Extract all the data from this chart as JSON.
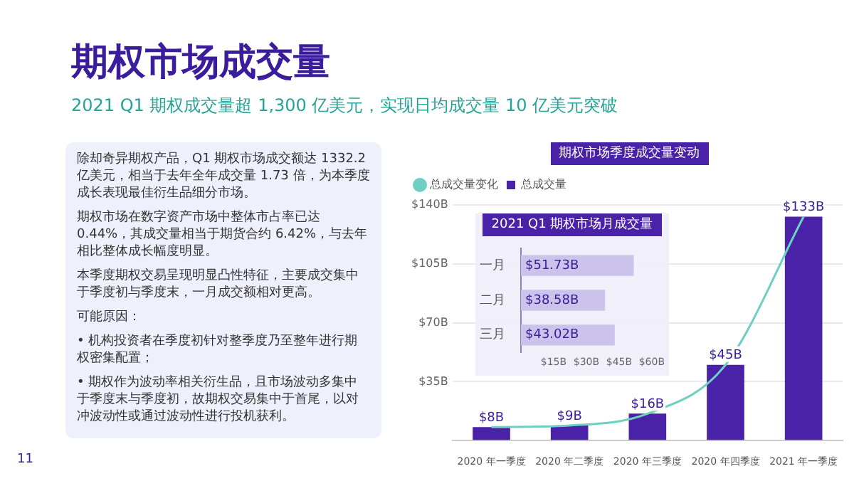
{
  "chart_data": [
    {
      "type": "other",
      "title": "期权市场成交量",
      "subtitle": "2021 Q1 期权成交量超 1,300 亿美元，实现日均成交量 10 亿美元突破",
      "annotations": [
        "除却奇异期权产品，Q1 期权市场成交额达 1332.2 亿美元，相当于去年全年成交量 1.73 倍，为本季度成长表现最佳衍生品细分市场。",
        "期权市场在数字资产市场中整体市占率已达 0.44%，其成交量相当于期货合约 6.42%，与去年相比整体成长幅度明显。",
        "本季度期权交易呈现明显凸性特征，主要成交集中于季度初与季度末，一月成交额相对更高。",
        "可能原因：",
        "• 机构投资者在季度初针对整季度乃至整年进行期权密集配置；",
        "• 期权作为波动率相关衍生品，且市场波动多集中于季度末与季度初，故期权交易集中于首尾，以对冲波动性或通过波动性进行投机获利。",
        "11"
      ]
    },
    {
      "type": "bar",
      "title": "期权市场季度成交量变动",
      "categories": [
        "2020 年一季度",
        "2020 年二季度",
        "2020 年三季度",
        "2020 年四季度",
        "2021 年一季度"
      ],
      "series": [
        {
          "name": "总成交量变化",
          "type": "line",
          "color": "#6fcfc0",
          "marker": "none",
          "values": [
            8,
            9,
            16,
            45,
            133
          ]
        },
        {
          "name": "总成交量",
          "type": "bar",
          "color": "#4a22a8",
          "values": [
            8,
            9,
            16,
            45,
            133
          ],
          "value_labels": [
            "$8B",
            "$9B",
            "$16B",
            "$45B",
            "$133B"
          ]
        }
      ],
      "ylim": [
        0,
        140
      ],
      "yticks": [
        {
          "value": 0,
          "label": null
        },
        {
          "value": 35,
          "label": "$35B"
        },
        {
          "value": 70,
          "label": "$70B"
        },
        {
          "value": 105,
          "label": "$105B"
        },
        {
          "value": 140,
          "label": "$140B"
        }
      ],
      "grid": "y",
      "legend": "top left"
    },
    {
      "type": "bar",
      "orientation": "horizontal",
      "title": "2021 Q1 期权市场月成交量",
      "categories": [
        "一月",
        "二月",
        "三月"
      ],
      "series": [
        {
          "type": "bar",
          "color": "#cbc3ea",
          "values": [
            51.73,
            38.58,
            43.02
          ],
          "value_labels": [
            "$51.73B",
            "$38.58B",
            "$43.02B"
          ]
        }
      ],
      "xlim": [
        0,
        60
      ],
      "xticks": [
        {
          "value": 15,
          "label": "$15B"
        },
        {
          "value": 30,
          "label": "$30B"
        },
        {
          "value": 45,
          "label": "$45B"
        },
        {
          "value": 60,
          "label": "$60B"
        }
      ]
    }
  ]
}
